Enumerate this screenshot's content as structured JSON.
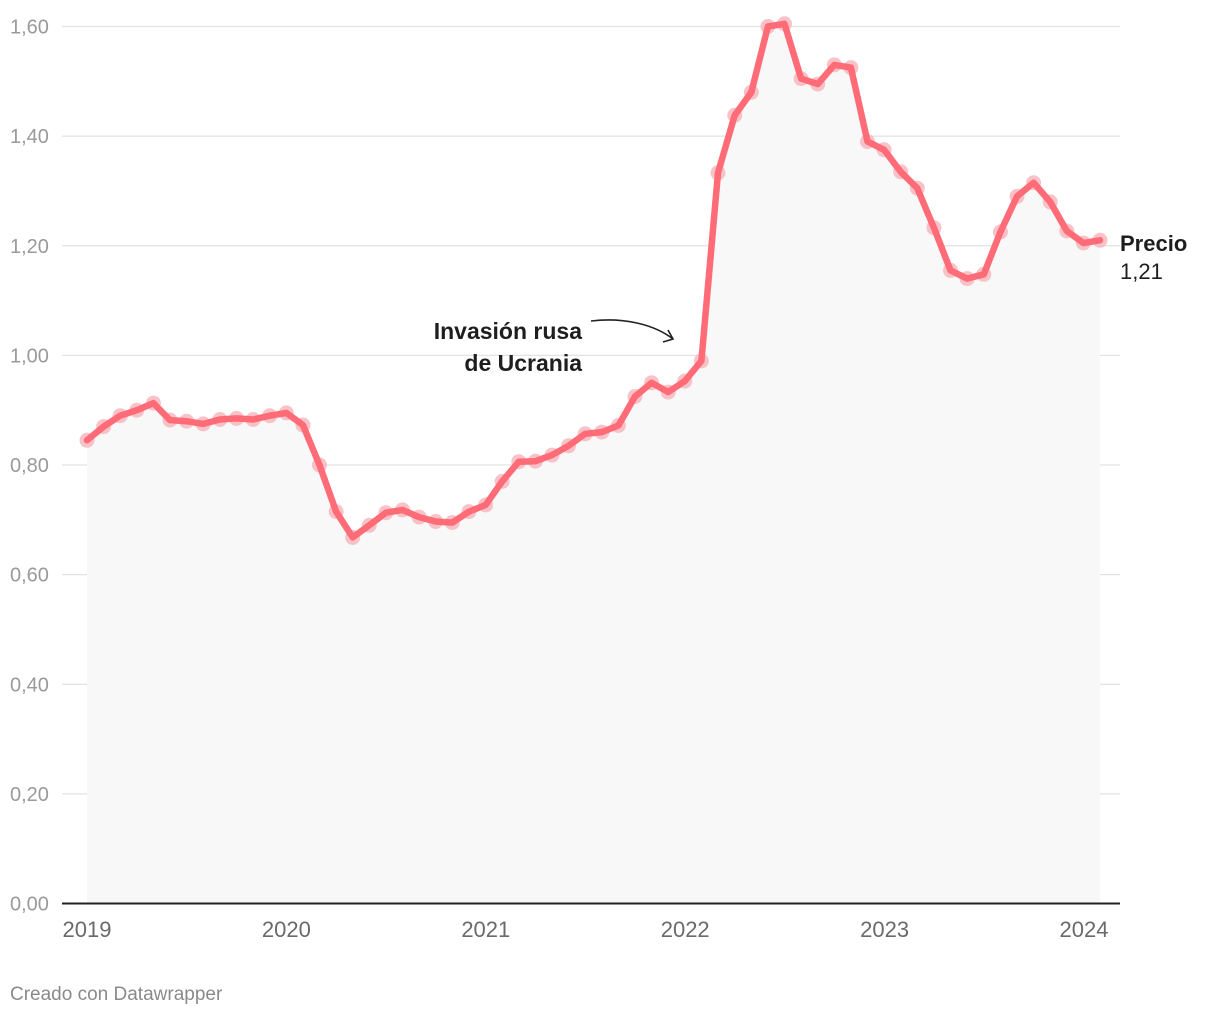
{
  "chart_data": {
    "type": "line",
    "title": "",
    "xlabel": "",
    "ylabel": "",
    "ylim": [
      0,
      1.6
    ],
    "y_ticks": [
      "0,00",
      "0,20",
      "0,40",
      "0,60",
      "0,80",
      "1,00",
      "1,20",
      "1,40",
      "1,60"
    ],
    "x_ticks": [
      "2019",
      "2020",
      "2021",
      "2022",
      "2023",
      "2024"
    ],
    "x_start": 2019.0,
    "x_step_years": 0.08333,
    "series": [
      {
        "name": "Precio",
        "color": "#ff6b76",
        "values": [
          0.845,
          0.87,
          0.89,
          0.9,
          0.913,
          0.882,
          0.88,
          0.875,
          0.883,
          0.885,
          0.883,
          0.89,
          0.895,
          0.873,
          0.8,
          0.715,
          0.668,
          0.69,
          0.713,
          0.718,
          0.705,
          0.697,
          0.695,
          0.715,
          0.727,
          0.77,
          0.806,
          0.807,
          0.818,
          0.835,
          0.857,
          0.86,
          0.872,
          0.925,
          0.95,
          0.933,
          0.953,
          0.99,
          1.333,
          1.438,
          1.48,
          1.6,
          1.605,
          1.505,
          1.495,
          1.53,
          1.525,
          1.39,
          1.375,
          1.335,
          1.305,
          1.233,
          1.155,
          1.14,
          1.148,
          1.225,
          1.29,
          1.315,
          1.28,
          1.227,
          1.205,
          1.21
        ]
      }
    ],
    "end_label": "Precio",
    "end_value": "1,21",
    "annotation": {
      "line1": "Invasión rusa",
      "line2": "de Ucrania",
      "x": 2022.0,
      "y": 0.99
    }
  },
  "footer": "Creado con Datawrapper"
}
